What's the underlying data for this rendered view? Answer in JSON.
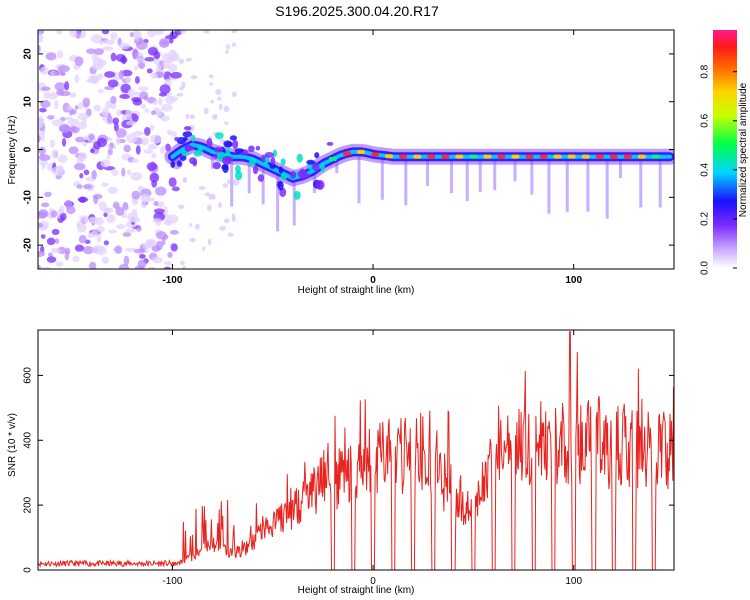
{
  "title": "S196.2025.300.04.20.R17",
  "chart_data": [
    {
      "type": "heatmap",
      "xlabel": "Height of straight line (km)",
      "ylabel": "Frequency (Hz)",
      "xlim": [
        -167,
        150
      ],
      "ylim": [
        -25,
        25
      ],
      "xticks": [
        "-100",
        "0",
        "100"
      ],
      "yticks": [
        "-20",
        "-10",
        "0",
        "10",
        "20"
      ],
      "trace": {
        "x": [
          -100,
          -95,
          -90,
          -85,
          -80,
          -75,
          -70,
          -65,
          -60,
          -55,
          -50,
          -45,
          -40,
          -35,
          -30,
          -25,
          -20,
          -15,
          -10,
          -5,
          0,
          10,
          20,
          30,
          40,
          50,
          60,
          70,
          80,
          90,
          100,
          110,
          120,
          130,
          140,
          148
        ],
        "y": [
          -1.5,
          0,
          1,
          0.5,
          -0.5,
          -1,
          -1.5,
          -1.5,
          -2,
          -3,
          -4,
          -5,
          -6,
          -5.5,
          -4.5,
          -3,
          -2,
          -1,
          -0.5,
          -0.5,
          -1,
          -1.5,
          -1.5,
          -1.5,
          -1.5,
          -1.5,
          -1.5,
          -1.5,
          -1.5,
          -1.5,
          -1.5,
          -1.5,
          -1.5,
          -1.5,
          -1.5,
          -1.5
        ]
      },
      "colorbar": {
        "label": "Normalized spectral amplitude",
        "ticks": [
          "0.0",
          "0.2",
          "0.4",
          "0.6",
          "0.8"
        ],
        "range": [
          0,
          0.97
        ]
      }
    },
    {
      "type": "line",
      "xlabel": "Height of straight line (km)",
      "ylabel": "SNR (10 * v/v)",
      "xlim": [
        -167,
        150
      ],
      "ylim": [
        0,
        740
      ],
      "xticks": [
        "-100",
        "0",
        "100"
      ],
      "yticks": [
        "0",
        "200",
        "400",
        "600"
      ],
      "series": [
        {
          "name": "SNR",
          "color": "#e8231f",
          "envelope": {
            "x": [
              -167,
              -100,
              -95,
              -90,
              -85,
              -80,
              -75,
              -70,
              -65,
              -60,
              -55,
              -50,
              -45,
              -40,
              -35,
              -30,
              -25,
              -20,
              -15,
              -10,
              -5,
              0,
              5,
              10,
              15,
              20,
              25,
              30,
              35,
              40,
              45,
              50,
              55,
              60,
              65,
              70,
              75,
              80,
              85,
              90,
              95,
              100,
              105,
              110,
              115,
              120,
              125,
              130,
              135,
              140,
              145,
              150
            ],
            "y": [
              20,
              20,
              30,
              50,
              70,
              90,
              80,
              60,
              70,
              100,
              140,
              170,
              190,
              230,
              260,
              290,
              310,
              330,
              350,
              370,
              380,
              390,
              400,
              410,
              420,
              430,
              420,
              400,
              330,
              300,
              250,
              200,
              300,
              380,
              420,
              440,
              450,
              460,
              450,
              460,
              470,
              460,
              470,
              460,
              450,
              440,
              450,
              440,
              450,
              430,
              440,
              440
            ]
          },
          "peak": 735,
          "drop_positions": [
            -20,
            -10,
            0,
            10,
            20,
            30,
            40,
            50,
            60,
            70,
            80,
            90,
            100,
            110,
            120,
            130,
            140
          ]
        }
      ]
    }
  ]
}
